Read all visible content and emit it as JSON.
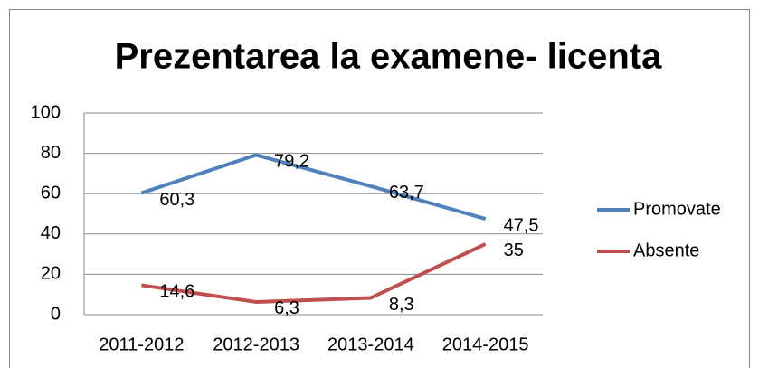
{
  "chart_data": {
    "type": "line",
    "title": "Prezentarea la examene- licenta",
    "categories": [
      "2011-2012",
      "2012-2013",
      "2013-2014",
      "2014-2015"
    ],
    "series": [
      {
        "name": "Promovate",
        "color": "#4f81bd",
        "values": [
          60.3,
          79.2,
          63.7,
          47.5
        ],
        "value_labels": [
          "60,3",
          "79,2",
          "63,7",
          "47,5"
        ]
      },
      {
        "name": "Absente",
        "color": "#c0504d",
        "values": [
          14.6,
          6.3,
          8.3,
          35
        ],
        "value_labels": [
          "14,6",
          "6,3",
          "8,3",
          "35"
        ]
      }
    ],
    "ylim": [
      0,
      100
    ],
    "yticks": [
      0,
      20,
      40,
      60,
      80,
      100
    ],
    "grid": true,
    "legend": "right"
  }
}
